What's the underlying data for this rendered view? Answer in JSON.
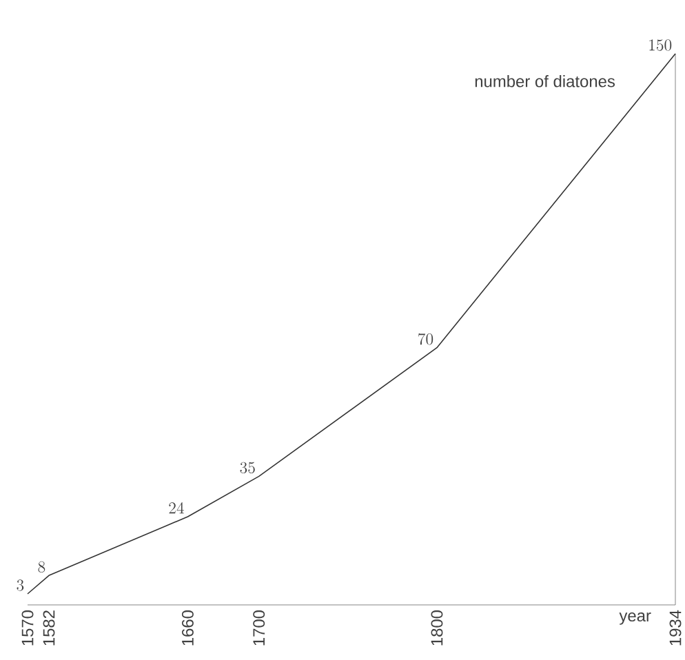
{
  "chart_data": {
    "type": "line",
    "xlabel": "year",
    "ylabel": "number of diatones",
    "x": [
      1570,
      1582,
      1660,
      1700,
      1800,
      1934
    ],
    "values": [
      3,
      8,
      24,
      35,
      70,
      150
    ],
    "color": "#333333",
    "xlim": [
      1570,
      1934
    ],
    "ylim": [
      0,
      150
    ],
    "xticks": [
      1570,
      1582,
      1660,
      1700,
      1800,
      1934
    ],
    "tick_labels": "x",
    "data_labels": true,
    "marker": "none",
    "line_style": "solid"
  }
}
